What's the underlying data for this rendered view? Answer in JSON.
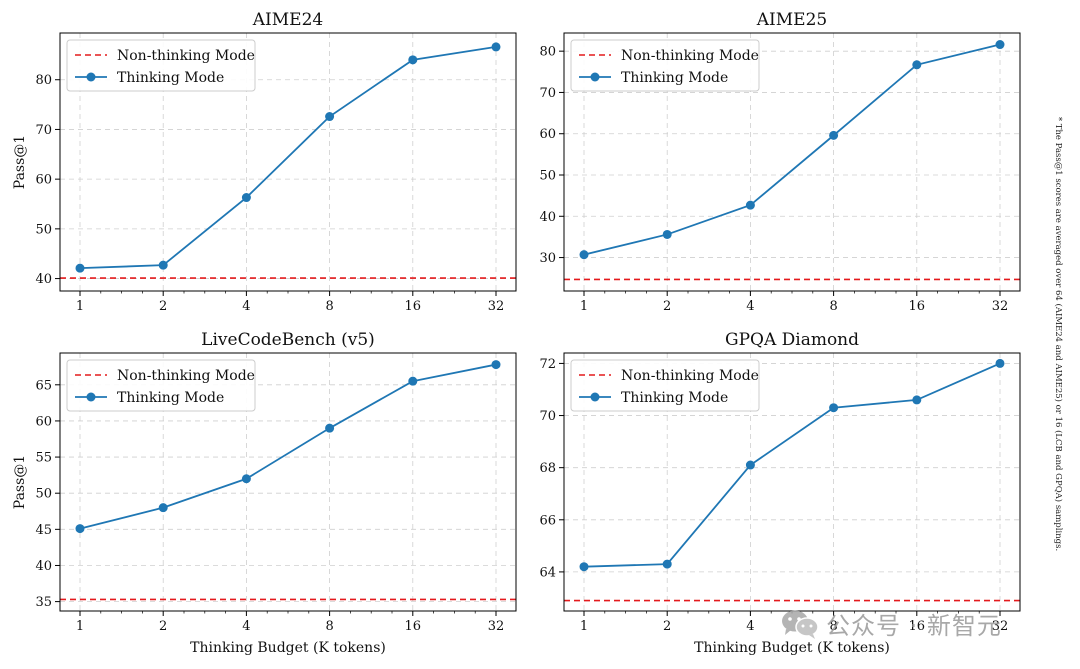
{
  "chart_data": [
    {
      "type": "line",
      "title": "AIME24",
      "xlabel": "",
      "ylabel": "Pass@1",
      "categories": [
        "1",
        "2",
        "4",
        "8",
        "16",
        "32"
      ],
      "series": [
        {
          "name": "Thinking Mode",
          "values": [
            42.1,
            42.7,
            56.3,
            72.6,
            84.0,
            86.6
          ],
          "color": "#1f77b4"
        }
      ],
      "baseline": {
        "name": "Non-thinking Mode",
        "value": 40.1,
        "color": "#e41a1c"
      },
      "ylim": [
        37.5,
        89.4
      ],
      "yticks": [
        40,
        50,
        60,
        70,
        80
      ],
      "legend": "top-left",
      "grid": true
    },
    {
      "type": "line",
      "title": "AIME25",
      "xlabel": "",
      "ylabel": "",
      "categories": [
        "1",
        "2",
        "4",
        "8",
        "16",
        "32"
      ],
      "series": [
        {
          "name": "Thinking Mode",
          "values": [
            30.7,
            35.6,
            42.7,
            59.6,
            76.7,
            81.6
          ],
          "color": "#1f77b4"
        }
      ],
      "baseline": {
        "name": "Non-thinking Mode",
        "value": 24.7,
        "color": "#e41a1c"
      },
      "ylim": [
        21.9,
        84.4
      ],
      "yticks": [
        30,
        40,
        50,
        60,
        70,
        80
      ],
      "legend": "top-left",
      "grid": true
    },
    {
      "type": "line",
      "title": "LiveCodeBench (v5)",
      "xlabel": "Thinking Budget (K tokens)",
      "ylabel": "Pass@1",
      "categories": [
        "1",
        "2",
        "4",
        "8",
        "16",
        "32"
      ],
      "series": [
        {
          "name": "Thinking Mode",
          "values": [
            45.1,
            48.0,
            52.0,
            59.0,
            65.5,
            67.8
          ],
          "color": "#1f77b4"
        }
      ],
      "baseline": {
        "name": "Non-thinking Mode",
        "value": 35.3,
        "color": "#e41a1c"
      },
      "ylim": [
        33.7,
        69.4
      ],
      "yticks": [
        35,
        40,
        45,
        50,
        55,
        60,
        65
      ],
      "legend": "top-left",
      "grid": true
    },
    {
      "type": "line",
      "title": "GPQA Diamond",
      "xlabel": "Thinking Budget (K tokens)",
      "ylabel": "",
      "categories": [
        "1",
        "2",
        "4",
        "8",
        "16",
        "32"
      ],
      "series": [
        {
          "name": "Thinking Mode",
          "values": [
            64.2,
            64.3,
            68.1,
            70.3,
            70.6,
            72.0
          ],
          "color": "#1f77b4"
        }
      ],
      "baseline": {
        "name": "Non-thinking Mode",
        "value": 62.9,
        "color": "#e41a1c"
      },
      "ylim": [
        62.5,
        72.4
      ],
      "yticks": [
        64,
        66,
        68,
        70,
        72
      ],
      "legend": "top-left",
      "grid": true
    }
  ],
  "footnote": "* The Pass@1 scores are averaged over 64 (AIME24 and AIME25) or 16 (LCB and GPQA) samplings.",
  "watermark": {
    "text": "公众号 · 新智元",
    "icon": "wechat-icon"
  }
}
